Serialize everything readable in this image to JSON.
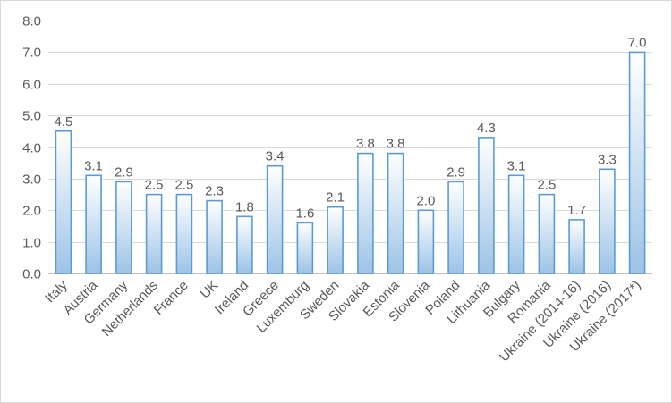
{
  "chart_data": {
    "type": "bar",
    "categories": [
      "Italy",
      "Austria",
      "Germany",
      "Netherlands",
      "France",
      "UK",
      "Ireland",
      "Greece",
      "Luxemburg",
      "Sweden",
      "Slovakia",
      "Estonia",
      "Slovenia",
      "Poland",
      "Lithuania",
      "Bulgary",
      "Romania",
      "Ukraine (2014-16)",
      "Ukraine (2016)",
      "Ukraine (2017*)"
    ],
    "values": [
      4.5,
      3.1,
      2.9,
      2.5,
      2.5,
      2.3,
      1.8,
      3.4,
      1.6,
      2.1,
      3.8,
      3.8,
      2.0,
      2.9,
      4.3,
      3.1,
      2.5,
      1.7,
      3.3,
      7.0
    ],
    "value_labels": [
      "4.5",
      "3.1",
      "2.9",
      "2.5",
      "2.5",
      "2.3",
      "1.8",
      "3.4",
      "1.6",
      "2.1",
      "3.8",
      "3.8",
      "2.0",
      "2.9",
      "4.3",
      "3.1",
      "2.5",
      "1.7",
      "3.3",
      "7.0"
    ],
    "y_ticks": [
      "0.0",
      "1.0",
      "2.0",
      "3.0",
      "4.0",
      "5.0",
      "6.0",
      "7.0",
      "8.0"
    ],
    "ylim": [
      0,
      8
    ],
    "title": "",
    "xlabel": "",
    "ylabel": "",
    "grid": true,
    "legend": "none",
    "colors": {
      "bar_fill_top": "#ffffff",
      "bar_fill_bottom": "#9dc3e6",
      "bar_stroke": "#5b9bd5",
      "gridline": "#d9d9d9",
      "text": "#595959"
    }
  }
}
